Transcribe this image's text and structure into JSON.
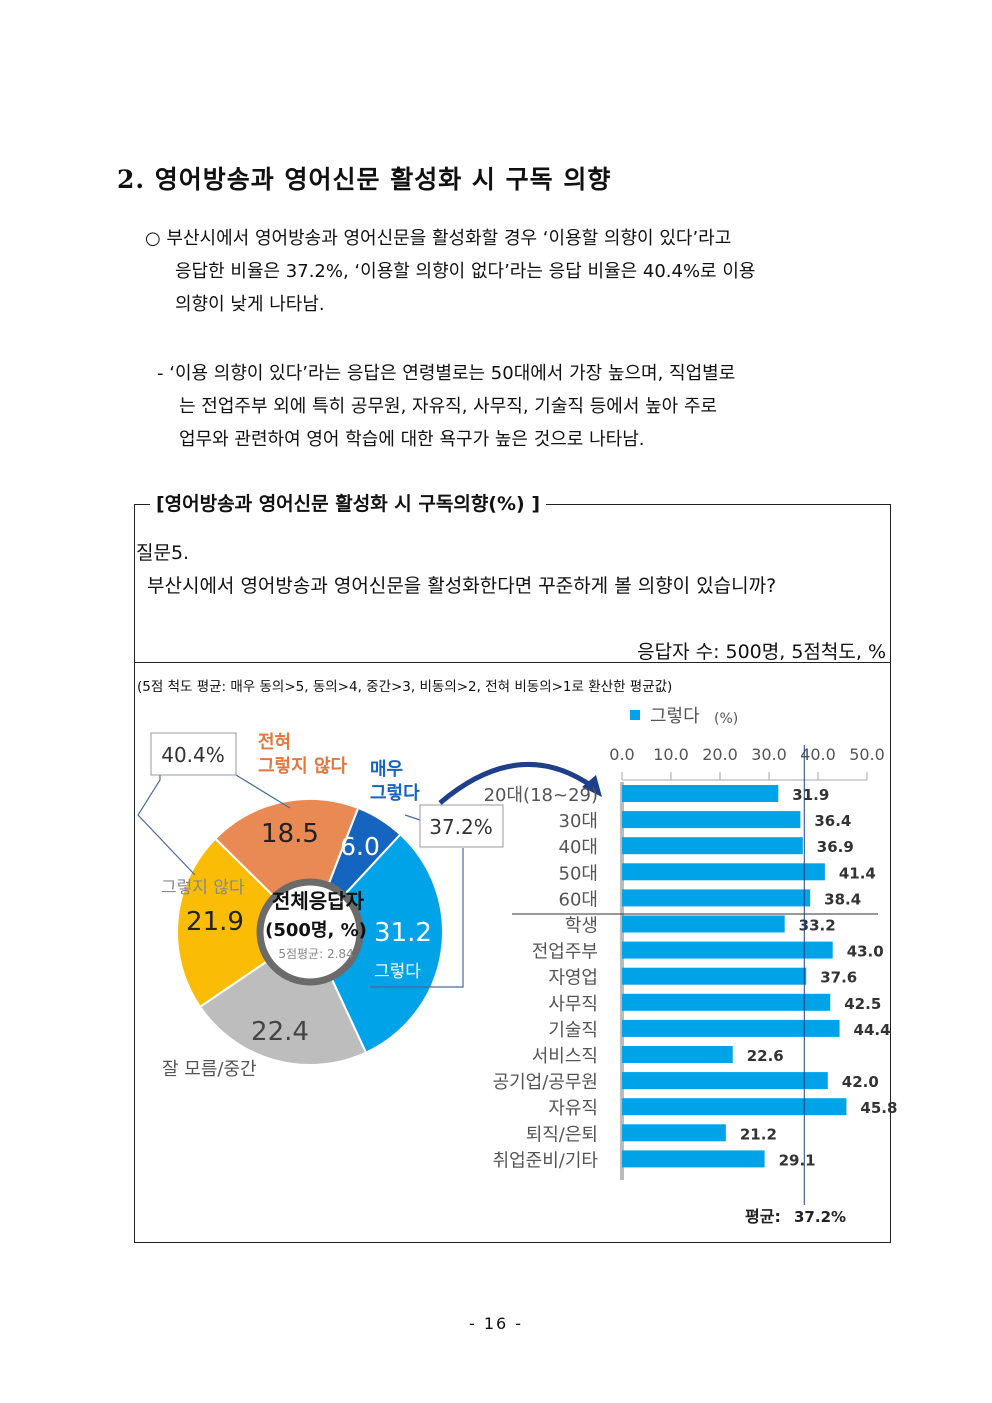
{
  "section": {
    "title": "2. 영어방송과 영어신문 활성화 시 구독 의향"
  },
  "paragraph1": {
    "line1": "○  부산시에서 영어방송과 영어신문을 활성화할 경우 ‘이용할 의향이 있다’라고",
    "line2": "응답한 비율은 37.2%, ‘이용할 의향이 없다’라는 응답 비율은 40.4%로 이용",
    "line3": "의향이 낮게 나타남."
  },
  "paragraph2": {
    "line1": "- ‘이용 의향이 있다’라는 응답은 연령별로는 50대에서 가장 높으며, 직업별로",
    "line2": "는 전업주부 외에 특히 공무원, 자유직, 사무직, 기술직 등에서 높아 주로",
    "line3": "업무와 관련하여 영어 학습에 대한 욕구가 높은 것으로 나타남."
  },
  "box": {
    "title": "[영어방송과 영어신문 활성화 시 구독의향(%) ]",
    "question_label": "질문5.",
    "question_text": "부산시에서 영어방송과 영어신문을 활성화한다면 꾸준하게 볼 의향이 있습니까?",
    "respondents": "응답자 수: 500명, 5점척도, %",
    "note": "(5점 척도 평균: 매우 동의>5, 동의>4, 중간>3, 비동의>2, 전혀 비동의>1로 환산한 평균값)"
  },
  "chart_data": [
    {
      "type": "pie",
      "center_title": "전체응답자",
      "center_subtitle": "(500명, %)",
      "center_note": "5점평균: 2.84",
      "slices": [
        {
          "label": "매우 그렇다",
          "label_line1": "매우",
          "label_line2": "그렇다",
          "value": 6.0,
          "color": "#1565c0"
        },
        {
          "label": "그렇다",
          "value": 31.2,
          "color": "#00a2e8"
        },
        {
          "label": "잘 모름/중간",
          "value": 22.4,
          "color": "#bdbdbd"
        },
        {
          "label": "그렇지 않다",
          "value": 21.9,
          "color": "#fbbc05"
        },
        {
          "label": "전혀 그렇지 않다",
          "label_line1": "전혀",
          "label_line2": "그렇지 않다",
          "value": 18.5,
          "color": "#e98a55"
        }
      ],
      "callouts": {
        "negative_total": "40.4%",
        "positive_total": "37.2%"
      }
    },
    {
      "type": "bar",
      "orientation": "horizontal",
      "legend": "■ 그렇다",
      "legend_unit": "(%)",
      "xlim": [
        0,
        50
      ],
      "ticks": [
        "0.0",
        "10.0",
        "20.0",
        "30.0",
        "40.0",
        "50.0"
      ],
      "categories": [
        "20대(18~29)",
        "30대",
        "40대",
        "50대",
        "60대",
        "학생",
        "전업주부",
        "자영업",
        "사무직",
        "기술직",
        "서비스직",
        "공기업/공무원",
        "자유직",
        "퇴직/은퇴",
        "취업준비/기타"
      ],
      "values": [
        31.9,
        36.4,
        36.9,
        41.4,
        38.4,
        33.2,
        43.0,
        37.6,
        42.5,
        44.4,
        22.6,
        42.0,
        45.8,
        21.2,
        29.1
      ],
      "value_labels": [
        "31.9",
        "36.4",
        "36.9",
        "41.4",
        "38.4",
        "33.2",
        "43.0",
        "37.6",
        "42.5",
        "44.4",
        "22.6",
        "42.0",
        "45.8",
        "21.2",
        "29.1"
      ],
      "average": 37.2,
      "average_label": "평균:",
      "average_value": "37.2%",
      "bar_color": "#00a2e8"
    }
  ],
  "page": {
    "number": "- 16 -"
  }
}
